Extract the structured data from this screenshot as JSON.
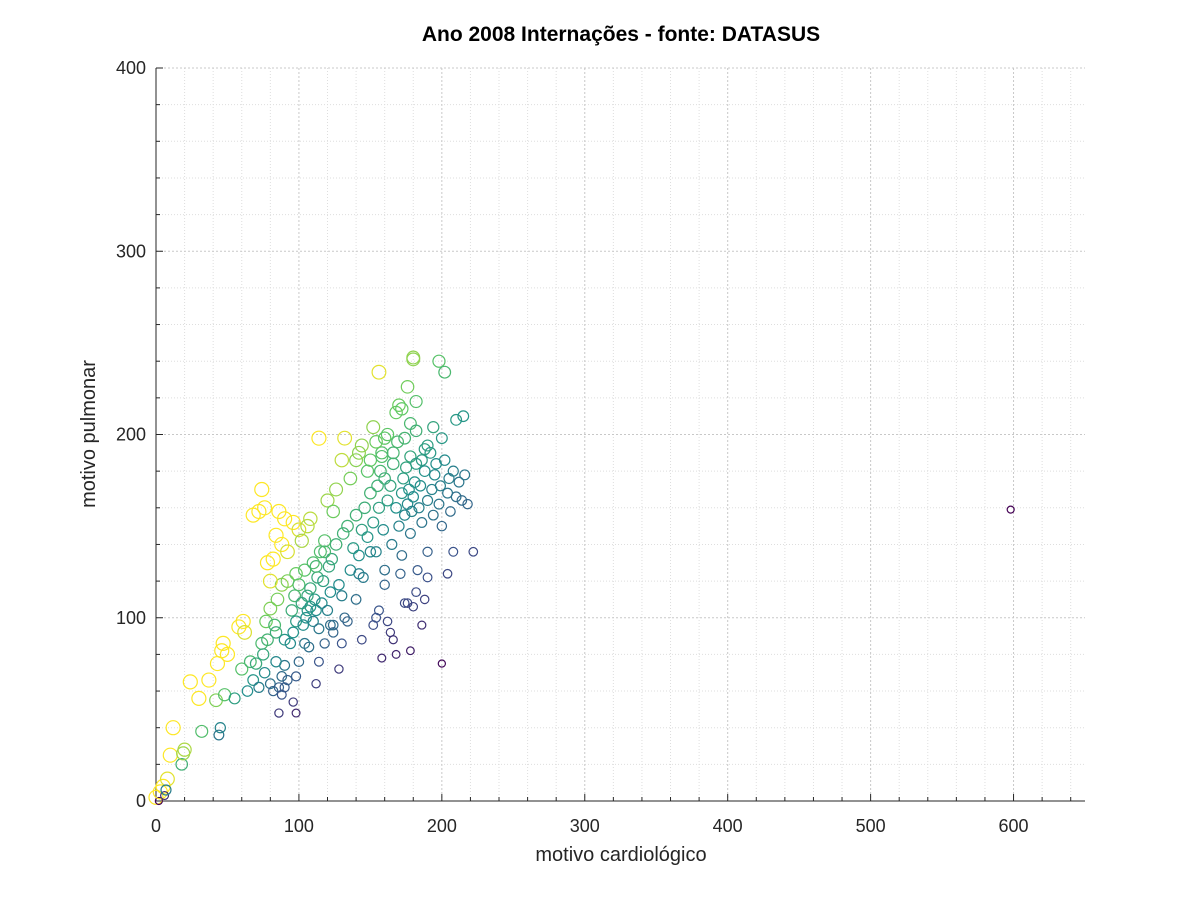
{
  "chart_data": {
    "type": "scatter",
    "title": "Ano 2008 Internações - fonte: DATASUS",
    "xlabel": "motivo cardiológico",
    "ylabel": "motivo pulmonar",
    "xlim": [
      0,
      650
    ],
    "ylim": [
      0,
      400
    ],
    "xticks": [
      0,
      100,
      200,
      300,
      400,
      500,
      600
    ],
    "yticks": [
      0,
      100,
      200,
      300,
      400
    ],
    "grid": true,
    "minor_grid": true,
    "legend": false,
    "colormap": [
      "#440154",
      "#3b528b",
      "#21918c",
      "#5ec962",
      "#fde725"
    ],
    "points": [
      {
        "x": 0,
        "y": 2
      },
      {
        "x": 2,
        "y": 0
      },
      {
        "x": 3,
        "y": 5
      },
      {
        "x": 5,
        "y": 8
      },
      {
        "x": 6,
        "y": 3
      },
      {
        "x": 8,
        "y": 12
      },
      {
        "x": 7,
        "y": 6
      },
      {
        "x": 10,
        "y": 25
      },
      {
        "x": 12,
        "y": 40
      },
      {
        "x": 18,
        "y": 20
      },
      {
        "x": 19,
        "y": 26
      },
      {
        "x": 20,
        "y": 28
      },
      {
        "x": 24,
        "y": 65
      },
      {
        "x": 30,
        "y": 56
      },
      {
        "x": 32,
        "y": 38
      },
      {
        "x": 37,
        "y": 66
      },
      {
        "x": 42,
        "y": 55
      },
      {
        "x": 43,
        "y": 75
      },
      {
        "x": 44,
        "y": 36
      },
      {
        "x": 45,
        "y": 40
      },
      {
        "x": 46,
        "y": 82
      },
      {
        "x": 47,
        "y": 86
      },
      {
        "x": 48,
        "y": 58
      },
      {
        "x": 50,
        "y": 80
      },
      {
        "x": 55,
        "y": 56
      },
      {
        "x": 58,
        "y": 95
      },
      {
        "x": 60,
        "y": 72
      },
      {
        "x": 61,
        "y": 98
      },
      {
        "x": 62,
        "y": 92
      },
      {
        "x": 64,
        "y": 60
      },
      {
        "x": 66,
        "y": 76
      },
      {
        "x": 68,
        "y": 66
      },
      {
        "x": 70,
        "y": 75
      },
      {
        "x": 72,
        "y": 62
      },
      {
        "x": 74,
        "y": 86
      },
      {
        "x": 75,
        "y": 80
      },
      {
        "x": 76,
        "y": 70
      },
      {
        "x": 77,
        "y": 98
      },
      {
        "x": 78,
        "y": 88
      },
      {
        "x": 80,
        "y": 64
      },
      {
        "x": 80,
        "y": 105
      },
      {
        "x": 82,
        "y": 60
      },
      {
        "x": 83,
        "y": 96
      },
      {
        "x": 84,
        "y": 92
      },
      {
        "x": 85,
        "y": 110
      },
      {
        "x": 86,
        "y": 62
      },
      {
        "x": 88,
        "y": 58
      },
      {
        "x": 88,
        "y": 118
      },
      {
        "x": 90,
        "y": 74
      },
      {
        "x": 90,
        "y": 88
      },
      {
        "x": 92,
        "y": 120
      },
      {
        "x": 94,
        "y": 86
      },
      {
        "x": 95,
        "y": 104
      },
      {
        "x": 96,
        "y": 92
      },
      {
        "x": 97,
        "y": 112
      },
      {
        "x": 98,
        "y": 98
      },
      {
        "x": 100,
        "y": 118
      },
      {
        "x": 102,
        "y": 108
      },
      {
        "x": 103,
        "y": 96
      },
      {
        "x": 104,
        "y": 126
      },
      {
        "x": 105,
        "y": 100
      },
      {
        "x": 106,
        "y": 112
      },
      {
        "x": 107,
        "y": 84
      },
      {
        "x": 108,
        "y": 116
      },
      {
        "x": 108,
        "y": 106
      },
      {
        "x": 110,
        "y": 130
      },
      {
        "x": 110,
        "y": 98
      },
      {
        "x": 111,
        "y": 110
      },
      {
        "x": 112,
        "y": 104
      },
      {
        "x": 113,
        "y": 122
      },
      {
        "x": 114,
        "y": 94
      },
      {
        "x": 115,
        "y": 136
      },
      {
        "x": 116,
        "y": 108
      },
      {
        "x": 117,
        "y": 120
      },
      {
        "x": 118,
        "y": 142
      },
      {
        "x": 120,
        "y": 104
      },
      {
        "x": 121,
        "y": 128
      },
      {
        "x": 122,
        "y": 114
      },
      {
        "x": 123,
        "y": 132
      },
      {
        "x": 124,
        "y": 96
      },
      {
        "x": 126,
        "y": 140
      },
      {
        "x": 128,
        "y": 118
      },
      {
        "x": 130,
        "y": 112
      },
      {
        "x": 131,
        "y": 146
      },
      {
        "x": 132,
        "y": 100
      },
      {
        "x": 134,
        "y": 150
      },
      {
        "x": 136,
        "y": 126
      },
      {
        "x": 138,
        "y": 138
      },
      {
        "x": 140,
        "y": 156
      },
      {
        "x": 142,
        "y": 134
      },
      {
        "x": 144,
        "y": 148
      },
      {
        "x": 145,
        "y": 122
      },
      {
        "x": 146,
        "y": 160
      },
      {
        "x": 148,
        "y": 144
      },
      {
        "x": 150,
        "y": 168
      },
      {
        "x": 152,
        "y": 152
      },
      {
        "x": 154,
        "y": 136
      },
      {
        "x": 155,
        "y": 172
      },
      {
        "x": 156,
        "y": 160
      },
      {
        "x": 157,
        "y": 180
      },
      {
        "x": 158,
        "y": 190
      },
      {
        "x": 159,
        "y": 148
      },
      {
        "x": 160,
        "y": 176
      },
      {
        "x": 160,
        "y": 118
      },
      {
        "x": 162,
        "y": 164
      },
      {
        "x": 164,
        "y": 172
      },
      {
        "x": 165,
        "y": 140
      },
      {
        "x": 166,
        "y": 184
      },
      {
        "x": 168,
        "y": 160
      },
      {
        "x": 169,
        "y": 196
      },
      {
        "x": 170,
        "y": 150
      },
      {
        "x": 171,
        "y": 124
      },
      {
        "x": 172,
        "y": 168
      },
      {
        "x": 173,
        "y": 176
      },
      {
        "x": 174,
        "y": 156
      },
      {
        "x": 175,
        "y": 182
      },
      {
        "x": 176,
        "y": 162
      },
      {
        "x": 177,
        "y": 170
      },
      {
        "x": 178,
        "y": 146
      },
      {
        "x": 178,
        "y": 188
      },
      {
        "x": 179,
        "y": 158
      },
      {
        "x": 180,
        "y": 166
      },
      {
        "x": 181,
        "y": 174
      },
      {
        "x": 182,
        "y": 184
      },
      {
        "x": 183,
        "y": 126
      },
      {
        "x": 184,
        "y": 160
      },
      {
        "x": 185,
        "y": 172
      },
      {
        "x": 186,
        "y": 152
      },
      {
        "x": 188,
        "y": 180
      },
      {
        "x": 190,
        "y": 136
      },
      {
        "x": 190,
        "y": 164
      },
      {
        "x": 192,
        "y": 190
      },
      {
        "x": 193,
        "y": 170
      },
      {
        "x": 194,
        "y": 156
      },
      {
        "x": 195,
        "y": 178
      },
      {
        "x": 196,
        "y": 184
      },
      {
        "x": 198,
        "y": 162
      },
      {
        "x": 199,
        "y": 172
      },
      {
        "x": 200,
        "y": 150
      },
      {
        "x": 202,
        "y": 186
      },
      {
        "x": 204,
        "y": 168
      },
      {
        "x": 205,
        "y": 176
      },
      {
        "x": 206,
        "y": 158
      },
      {
        "x": 208,
        "y": 180
      },
      {
        "x": 210,
        "y": 166
      },
      {
        "x": 210,
        "y": 208
      },
      {
        "x": 212,
        "y": 174
      },
      {
        "x": 214,
        "y": 164
      },
      {
        "x": 215,
        "y": 210
      },
      {
        "x": 216,
        "y": 178
      },
      {
        "x": 218,
        "y": 162
      },
      {
        "x": 222,
        "y": 136
      },
      {
        "x": 68,
        "y": 156
      },
      {
        "x": 72,
        "y": 158
      },
      {
        "x": 74,
        "y": 170
      },
      {
        "x": 76,
        "y": 160
      },
      {
        "x": 78,
        "y": 130
      },
      {
        "x": 80,
        "y": 120
      },
      {
        "x": 82,
        "y": 132
      },
      {
        "x": 84,
        "y": 145
      },
      {
        "x": 86,
        "y": 158
      },
      {
        "x": 88,
        "y": 140
      },
      {
        "x": 90,
        "y": 154
      },
      {
        "x": 92,
        "y": 136
      },
      {
        "x": 96,
        "y": 152
      },
      {
        "x": 98,
        "y": 124
      },
      {
        "x": 100,
        "y": 148
      },
      {
        "x": 102,
        "y": 142
      },
      {
        "x": 106,
        "y": 150
      },
      {
        "x": 108,
        "y": 154
      },
      {
        "x": 112,
        "y": 128
      },
      {
        "x": 114,
        "y": 198
      },
      {
        "x": 118,
        "y": 136
      },
      {
        "x": 120,
        "y": 164
      },
      {
        "x": 124,
        "y": 158
      },
      {
        "x": 126,
        "y": 170
      },
      {
        "x": 130,
        "y": 186
      },
      {
        "x": 132,
        "y": 198
      },
      {
        "x": 136,
        "y": 176
      },
      {
        "x": 140,
        "y": 186
      },
      {
        "x": 142,
        "y": 190
      },
      {
        "x": 144,
        "y": 194
      },
      {
        "x": 148,
        "y": 180
      },
      {
        "x": 150,
        "y": 186
      },
      {
        "x": 152,
        "y": 204
      },
      {
        "x": 154,
        "y": 196
      },
      {
        "x": 156,
        "y": 234
      },
      {
        "x": 158,
        "y": 188
      },
      {
        "x": 160,
        "y": 198
      },
      {
        "x": 162,
        "y": 200
      },
      {
        "x": 166,
        "y": 190
      },
      {
        "x": 168,
        "y": 212
      },
      {
        "x": 170,
        "y": 216
      },
      {
        "x": 172,
        "y": 214
      },
      {
        "x": 174,
        "y": 198
      },
      {
        "x": 176,
        "y": 226
      },
      {
        "x": 178,
        "y": 206
      },
      {
        "x": 180,
        "y": 241
      },
      {
        "x": 180,
        "y": 242
      },
      {
        "x": 182,
        "y": 202
      },
      {
        "x": 182,
        "y": 218
      },
      {
        "x": 186,
        "y": 186
      },
      {
        "x": 188,
        "y": 192
      },
      {
        "x": 190,
        "y": 194
      },
      {
        "x": 194,
        "y": 204
      },
      {
        "x": 198,
        "y": 240
      },
      {
        "x": 200,
        "y": 198
      },
      {
        "x": 202,
        "y": 234
      },
      {
        "x": 204,
        "y": 124
      },
      {
        "x": 208,
        "y": 136
      },
      {
        "x": 84,
        "y": 76
      },
      {
        "x": 86,
        "y": 48
      },
      {
        "x": 88,
        "y": 68
      },
      {
        "x": 90,
        "y": 62
      },
      {
        "x": 92,
        "y": 66
      },
      {
        "x": 96,
        "y": 54
      },
      {
        "x": 98,
        "y": 48
      },
      {
        "x": 98,
        "y": 68
      },
      {
        "x": 100,
        "y": 76
      },
      {
        "x": 104,
        "y": 86
      },
      {
        "x": 106,
        "y": 104
      },
      {
        "x": 112,
        "y": 64
      },
      {
        "x": 114,
        "y": 76
      },
      {
        "x": 118,
        "y": 86
      },
      {
        "x": 122,
        "y": 96
      },
      {
        "x": 124,
        "y": 92
      },
      {
        "x": 128,
        "y": 72
      },
      {
        "x": 130,
        "y": 86
      },
      {
        "x": 134,
        "y": 98
      },
      {
        "x": 140,
        "y": 110
      },
      {
        "x": 142,
        "y": 124
      },
      {
        "x": 144,
        "y": 88
      },
      {
        "x": 150,
        "y": 136
      },
      {
        "x": 152,
        "y": 96
      },
      {
        "x": 154,
        "y": 100
      },
      {
        "x": 156,
        "y": 104
      },
      {
        "x": 158,
        "y": 78
      },
      {
        "x": 160,
        "y": 126
      },
      {
        "x": 162,
        "y": 98
      },
      {
        "x": 164,
        "y": 92
      },
      {
        "x": 166,
        "y": 88
      },
      {
        "x": 168,
        "y": 80
      },
      {
        "x": 172,
        "y": 134
      },
      {
        "x": 174,
        "y": 108
      },
      {
        "x": 176,
        "y": 108
      },
      {
        "x": 178,
        "y": 82
      },
      {
        "x": 180,
        "y": 106
      },
      {
        "x": 182,
        "y": 114
      },
      {
        "x": 186,
        "y": 96
      },
      {
        "x": 188,
        "y": 110
      },
      {
        "x": 190,
        "y": 122
      },
      {
        "x": 200,
        "y": 75
      },
      {
        "x": 598,
        "y": 159
      }
    ]
  }
}
